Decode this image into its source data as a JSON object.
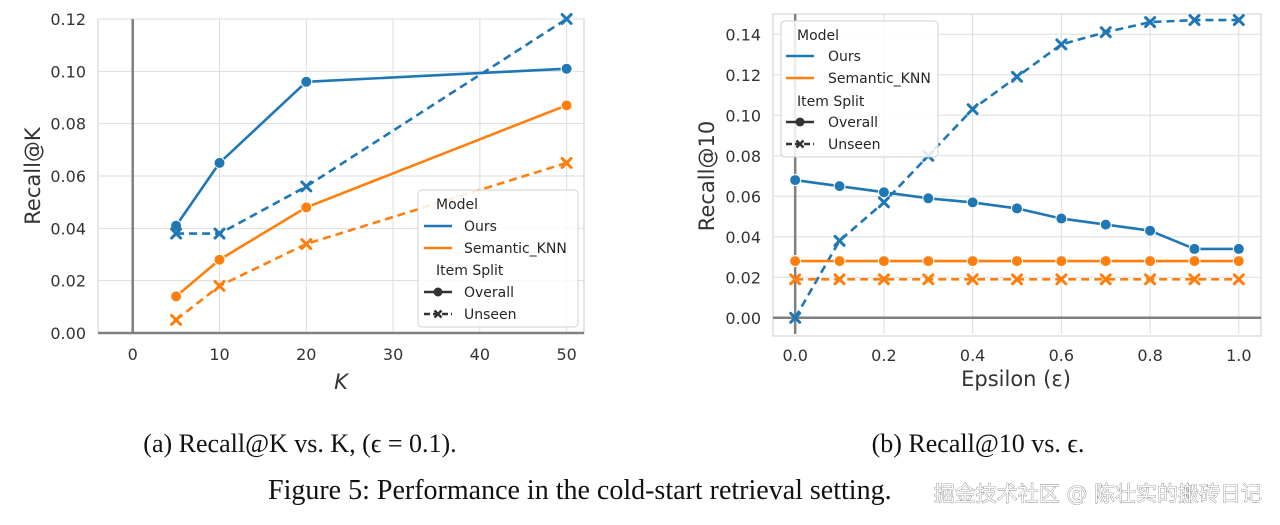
{
  "chart_data": [
    {
      "type": "line",
      "xlabel": "K",
      "ylabel": "Recall@K",
      "xlim": [
        -4,
        52
      ],
      "ylim": [
        0,
        0.12
      ],
      "xticks": [
        0,
        10,
        20,
        30,
        40,
        50
      ],
      "yticks": [
        0.0,
        0.02,
        0.04,
        0.06,
        0.08,
        0.1,
        0.12
      ],
      "xtick_labels": [
        "0",
        "10",
        "20",
        "30",
        "40",
        "50"
      ],
      "ytick_labels": [
        "0.00",
        "0.02",
        "0.04",
        "0.06",
        "0.08",
        "0.10",
        "0.12"
      ],
      "x": [
        5,
        10,
        20,
        50
      ],
      "grid": true,
      "legend_position": "lower-right",
      "series": [
        {
          "name": "Ours — Overall",
          "color": "#1f77b4",
          "style": "solid",
          "marker": "circle",
          "values": [
            0.041,
            0.065,
            0.096,
            0.101
          ]
        },
        {
          "name": "Ours — Unseen",
          "color": "#1f77b4",
          "style": "dashed",
          "marker": "x",
          "values": [
            0.038,
            0.038,
            0.056,
            0.12
          ]
        },
        {
          "name": "Semantic_KNN — Overall",
          "color": "#ff7f0e",
          "style": "solid",
          "marker": "circle",
          "values": [
            0.014,
            0.028,
            0.048,
            0.087
          ]
        },
        {
          "name": "Semantic_KNN — Unseen",
          "color": "#ff7f0e",
          "style": "dashed",
          "marker": "x",
          "values": [
            0.005,
            0.018,
            0.034,
            0.065
          ]
        }
      ],
      "caption": "(a) Recall@K vs. K, (ϵ = 0.1)."
    },
    {
      "type": "line",
      "xlabel": "Epsilon (ε)",
      "ylabel": "Recall@10",
      "xlim": [
        -0.05,
        1.05
      ],
      "ylim": [
        -0.008,
        0.15
      ],
      "xticks": [
        0.0,
        0.2,
        0.4,
        0.6,
        0.8,
        1.0
      ],
      "yticks": [
        0.0,
        0.02,
        0.04,
        0.06,
        0.08,
        0.1,
        0.12,
        0.14
      ],
      "xtick_labels": [
        "0.0",
        "0.2",
        "0.4",
        "0.6",
        "0.8",
        "1.0"
      ],
      "ytick_labels": [
        "0.00",
        "0.02",
        "0.04",
        "0.06",
        "0.08",
        "0.10",
        "0.12",
        "0.14"
      ],
      "x": [
        0.0,
        0.1,
        0.2,
        0.3,
        0.4,
        0.5,
        0.6,
        0.7,
        0.8,
        0.9,
        1.0
      ],
      "grid": true,
      "legend_position": "upper-left",
      "series": [
        {
          "name": "Ours — Overall",
          "color": "#1f77b4",
          "style": "solid",
          "marker": "circle",
          "values": [
            0.068,
            0.065,
            0.062,
            0.059,
            0.057,
            0.054,
            0.049,
            0.046,
            0.043,
            0.034,
            0.034
          ]
        },
        {
          "name": "Ours — Unseen",
          "color": "#1f77b4",
          "style": "dashed",
          "marker": "x",
          "values": [
            0.0,
            0.038,
            0.057,
            0.08,
            0.103,
            0.119,
            0.135,
            0.141,
            0.146,
            0.147,
            0.147
          ]
        },
        {
          "name": "Semantic_KNN — Overall",
          "color": "#ff7f0e",
          "style": "solid",
          "marker": "circle",
          "values": [
            0.028,
            0.028,
            0.028,
            0.028,
            0.028,
            0.028,
            0.028,
            0.028,
            0.028,
            0.028,
            0.028
          ]
        },
        {
          "name": "Semantic_KNN — Unseen",
          "color": "#ff7f0e",
          "style": "dashed",
          "marker": "x",
          "values": [
            0.019,
            0.019,
            0.019,
            0.019,
            0.019,
            0.019,
            0.019,
            0.019,
            0.019,
            0.019,
            0.019
          ]
        }
      ],
      "caption": "(b) Recall@10 vs. ϵ."
    }
  ],
  "legend": {
    "model_title": "Model",
    "ours": "Ours",
    "knn": "Semantic_KNN",
    "split_title": "Item Split",
    "overall": "Overall",
    "unseen": "Unseen"
  },
  "figure_caption": "Figure 5: Performance in the cold-start retrieval setting.",
  "watermark": "掘金技术社区 @ 陈壮实的搬砖日记"
}
